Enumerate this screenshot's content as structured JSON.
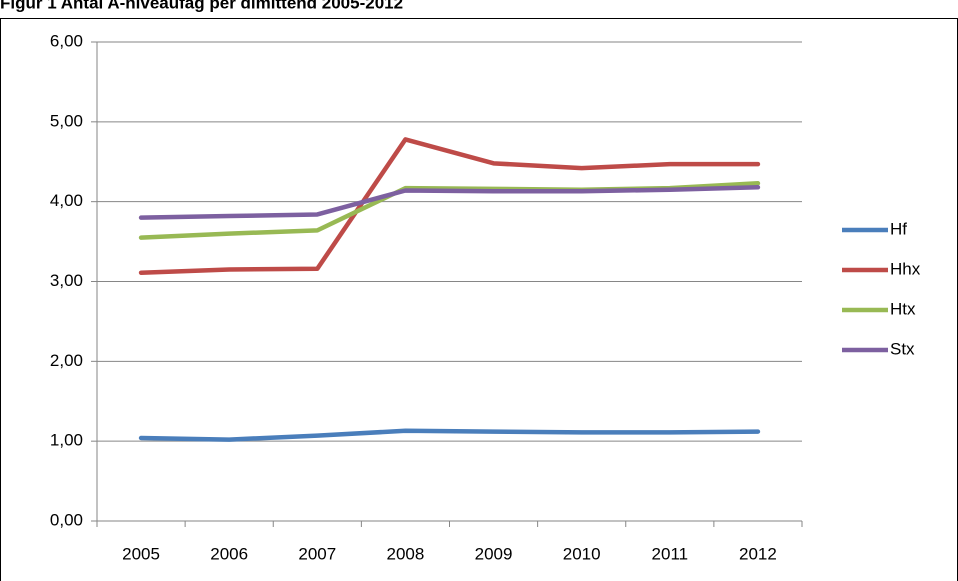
{
  "chart_data": {
    "type": "line",
    "title": "Figur 1 Antal A-niveaufag per dimittend 2005-2012",
    "categories": [
      "2005",
      "2006",
      "2007",
      "2008",
      "2009",
      "2010",
      "2011",
      "2012"
    ],
    "series": [
      {
        "name": "Hf",
        "color": "#4a7ebb",
        "values": [
          1.04,
          1.02,
          1.07,
          1.13,
          1.12,
          1.11,
          1.11,
          1.12
        ]
      },
      {
        "name": "Hhx",
        "color": "#be4b48",
        "values": [
          3.11,
          3.15,
          3.16,
          4.78,
          4.48,
          4.42,
          4.47,
          4.47
        ]
      },
      {
        "name": "Htx",
        "color": "#98b954",
        "values": [
          3.55,
          3.6,
          3.64,
          4.17,
          4.16,
          4.15,
          4.17,
          4.23
        ]
      },
      {
        "name": "Stx",
        "color": "#7d60a0",
        "values": [
          3.8,
          3.82,
          3.84,
          4.14,
          4.13,
          4.13,
          4.15,
          4.18
        ]
      }
    ],
    "ylim": [
      0,
      6
    ],
    "yticks": [
      {
        "value": 0,
        "label": "0,00"
      },
      {
        "value": 1,
        "label": "1,00"
      },
      {
        "value": 2,
        "label": "2,00"
      },
      {
        "value": 3,
        "label": "3,00"
      },
      {
        "value": 4,
        "label": "4,00"
      },
      {
        "value": 5,
        "label": "5,00"
      },
      {
        "value": 6,
        "label": "6,00"
      }
    ],
    "grid": true,
    "legend": "right"
  }
}
